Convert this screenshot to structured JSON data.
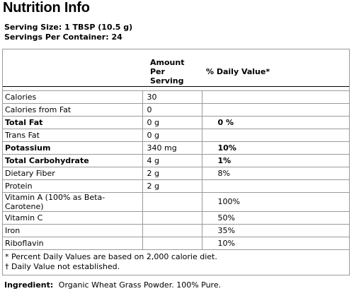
{
  "title": "Nutrition Info",
  "serving_size": "Serving Size: 1 TBSP (10.5 g)",
  "servings_per_container": "Servings Per Container: 24",
  "table": {
    "col_amount": "Amount Per Serving",
    "col_amount_line1": "Amount Per",
    "col_amount_line2": "Serving",
    "col_dv": "% Daily Value*",
    "rows": [
      {
        "name": "Calories",
        "amount": "30",
        "dv": "",
        "bold": false
      },
      {
        "name": "Calories from Fat",
        "amount": "0",
        "dv": "",
        "bold": false
      },
      {
        "name": "Total Fat",
        "amount": "0 g",
        "dv": "0 %",
        "bold": true
      },
      {
        "name": "Trans Fat",
        "amount": "0 g",
        "dv": "",
        "bold": false
      },
      {
        "name": "Potassium",
        "amount": "340 mg",
        "dv": "10%",
        "bold": true
      },
      {
        "name": "Total Carbohydrate",
        "amount": "4 g",
        "dv": "1%",
        "bold": true
      },
      {
        "name": "Dietary Fiber",
        "amount": "2 g",
        "dv": "8%",
        "bold": false
      },
      {
        "name": "Protein",
        "amount": "2 g",
        "dv": "",
        "bold": false
      },
      {
        "name": "Vitamin A (100% as Beta-Carotene)",
        "amount": "",
        "dv": "100%",
        "bold": false
      },
      {
        "name": "Vitamin C",
        "amount": "",
        "dv": "50%",
        "bold": false
      },
      {
        "name": "Iron",
        "amount": "",
        "dv": "35%",
        "bold": false
      },
      {
        "name": "Riboflavin",
        "amount": "",
        "dv": "10%",
        "bold": false
      }
    ]
  },
  "footnotes": {
    "percent": "* Percent Daily Values are based on 2,000 calorie diet.",
    "dagger": "† Daily Value not established."
  },
  "ingredient": {
    "label": "Ingredient:",
    "text": "Organic Wheat Grass Powder.  100% Pure."
  }
}
